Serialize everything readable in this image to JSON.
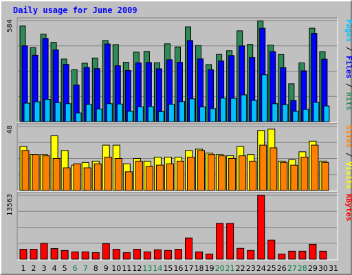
{
  "chart_data": {
    "title": "Daily usage for June 2009",
    "type": "bar",
    "days": [
      1,
      2,
      3,
      4,
      5,
      6,
      7,
      8,
      9,
      10,
      11,
      12,
      13,
      14,
      15,
      16,
      17,
      18,
      19,
      20,
      21,
      22,
      23,
      24,
      25,
      26,
      27,
      28,
      29,
      30,
      31
    ],
    "weekend_days": [
      6,
      7,
      13,
      14,
      20,
      21,
      27,
      28
    ],
    "colors": {
      "hits": "#2e8b57",
      "files": "#0000ff",
      "pages": "#00c0ff",
      "visits": "#ffff00",
      "sites": "#ff8000",
      "kbytes": "#ff0000",
      "weekday_label": "#000000",
      "weekend_label": "#008040"
    },
    "panels": [
      {
        "key": "hits_files_pages",
        "ymax_label": "584",
        "ymax": 584,
        "right_label": [
          {
            "text": "Pages",
            "color": "#00c0ff"
          },
          {
            "text": " / ",
            "color": "#000000"
          },
          {
            "text": "Files",
            "color": "#0000ff"
          },
          {
            "text": " / ",
            "color": "#000000"
          },
          {
            "text": "Hits",
            "color": "#2e8b57"
          }
        ],
        "series": [
          {
            "name": "Hits",
            "color": "#2e8b57",
            "values": [
              553,
              428,
              506,
              458,
              362,
              300,
              338,
              368,
              469,
              445,
              343,
              402,
              406,
              341,
              450,
              432,
              548,
              440,
              330,
              389,
              410,
              525,
              446,
              582,
              443,
              388,
              219,
              340,
              540,
              405,
              0
            ]
          },
          {
            "name": "Files",
            "color": "#0000ff",
            "values": [
              438,
              384,
              481,
              415,
              331,
              212,
              313,
              307,
              449,
              323,
              296,
              340,
              342,
              306,
              358,
              343,
              469,
              363,
              300,
              351,
              382,
              438,
              371,
              540,
              405,
              312,
              122,
              294,
              510,
              361,
              0
            ]
          },
          {
            "name": "Pages",
            "color": "#00c0ff",
            "values": [
              107,
              115,
              129,
              110,
              104,
              51,
              100,
              73,
              104,
              102,
              60,
              86,
              87,
              58,
              100,
              116,
              132,
              85,
              76,
              136,
              135,
              155,
              123,
              271,
              104,
              98,
              60,
              71,
              112,
              91,
              0
            ]
          }
        ]
      },
      {
        "key": "visits_sites",
        "ymax_label": "48",
        "ymax": 48,
        "right_label": [
          {
            "text": "Sites",
            "color": "#ff8000"
          },
          {
            "text": " / ",
            "color": "#000000"
          },
          {
            "text": "Visits",
            "color": "#ffff00"
          }
        ],
        "series": [
          {
            "name": "Visits",
            "color": "#ffff00",
            "values": [
              33,
              27,
              27,
              41,
              30,
              19,
              21,
              22,
              34,
              34,
              20,
              24,
              22,
              25,
              25,
              25,
              30,
              31,
              28,
              27,
              26,
              33,
              27,
              45,
              46,
              22,
              23,
              29,
              37,
              22,
              0
            ]
          },
          {
            "name": "Sites",
            "color": "#ff8000",
            "values": [
              30,
              27,
              26,
              24,
              17,
              20,
              17,
              20,
              25,
              24,
              14,
              22,
              18,
              19,
              20,
              22,
              25,
              30,
              27,
              26,
              24,
              26,
              22,
              34,
              32,
              21,
              19,
              25,
              34,
              21,
              0
            ]
          }
        ]
      },
      {
        "key": "kbytes",
        "ymax_label": "13563",
        "ymax": 13563,
        "right_label": [
          {
            "text": "KBytes",
            "color": "#ff0000"
          }
        ],
        "series": [
          {
            "name": "KBytes",
            "color": "#ff0000",
            "values": [
              2100,
              2100,
              3350,
              2250,
              1850,
              1550,
              1550,
              1400,
              3300,
              2100,
              1400,
              2100,
              1550,
              2000,
              1850,
              2100,
              4500,
              1550,
              1100,
              7600,
              7600,
              2300,
              1850,
              13563,
              4050,
              1100,
              1700,
              1700,
              3150,
              1700,
              0
            ]
          }
        ]
      }
    ]
  }
}
